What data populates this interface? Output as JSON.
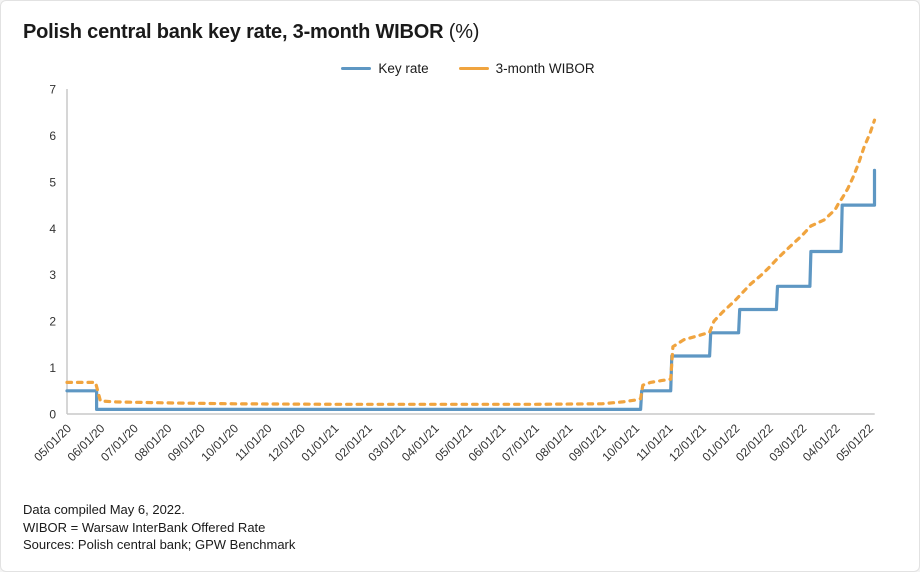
{
  "title": {
    "main": "Polish central bank key rate, 3-month WIBOR",
    "suffix": " (%)"
  },
  "footer": {
    "line1": "Data compiled May 6, 2022.",
    "line2": "WIBOR = Warsaw InterBank Offered Rate",
    "line3": "Sources: Polish central bank; GPW Benchmark"
  },
  "colors": {
    "key_rate": "#5e97c3",
    "wibor": "#f0a43f",
    "axis": "#c8c8c8",
    "tick_text": "#333333",
    "text": "#1a1a1a"
  },
  "chart_data": {
    "type": "line",
    "title": "Polish central bank key rate, 3-month WIBOR (%)",
    "xlabel": "",
    "ylabel": "",
    "ylim": [
      0,
      7
    ],
    "y_ticks": [
      0,
      1,
      2,
      3,
      4,
      5,
      6,
      7
    ],
    "grid": false,
    "legend_position": "top-center",
    "x_range_months": 24.17,
    "x_tick_labels": [
      "05/01/20",
      "06/01/20",
      "07/01/20",
      "08/01/20",
      "09/01/20",
      "10/01/20",
      "11/01/20",
      "12/01/20",
      "01/01/21",
      "02/01/21",
      "03/01/21",
      "04/01/21",
      "05/01/21",
      "06/01/21",
      "07/01/21",
      "08/01/21",
      "09/01/21",
      "10/01/21",
      "11/01/21",
      "12/01/21",
      "01/01/22",
      "02/01/22",
      "03/01/22",
      "04/01/22",
      "05/01/22"
    ],
    "series": [
      {
        "name": "Key rate",
        "color": "#5e97c3",
        "style": "solid",
        "interpolation": "step",
        "points": [
          [
            "2020-05-01",
            0.5
          ],
          [
            "2020-05-28",
            0.5
          ],
          [
            "2020-05-28",
            0.1
          ],
          [
            "2021-10-06",
            0.1
          ],
          [
            "2021-10-07",
            0.5
          ],
          [
            "2021-11-03",
            0.5
          ],
          [
            "2021-11-04",
            1.25
          ],
          [
            "2021-12-08",
            1.25
          ],
          [
            "2021-12-09",
            1.75
          ],
          [
            "2022-01-04",
            1.75
          ],
          [
            "2022-01-05",
            2.25
          ],
          [
            "2022-02-08",
            2.25
          ],
          [
            "2022-02-09",
            2.75
          ],
          [
            "2022-03-08",
            2.75
          ],
          [
            "2022-03-09",
            3.5
          ],
          [
            "2022-04-06",
            3.5
          ],
          [
            "2022-04-07",
            4.5
          ],
          [
            "2022-05-06",
            4.5
          ],
          [
            "2022-05-06",
            5.25
          ]
        ]
      },
      {
        "name": "3-month WIBOR",
        "color": "#f0a43f",
        "style": "dashed",
        "interpolation": "linear",
        "points": [
          [
            "2020-05-01",
            0.68
          ],
          [
            "2020-05-27",
            0.68
          ],
          [
            "2020-06-01",
            0.28
          ],
          [
            "2020-06-15",
            0.26
          ],
          [
            "2020-08-01",
            0.24
          ],
          [
            "2020-10-01",
            0.22
          ],
          [
            "2021-01-01",
            0.21
          ],
          [
            "2021-07-01",
            0.21
          ],
          [
            "2021-09-01",
            0.22
          ],
          [
            "2021-09-20",
            0.26
          ],
          [
            "2021-10-01",
            0.3
          ],
          [
            "2021-10-06",
            0.33
          ],
          [
            "2021-10-08",
            0.62
          ],
          [
            "2021-10-15",
            0.68
          ],
          [
            "2021-10-25",
            0.72
          ],
          [
            "2021-11-03",
            0.75
          ],
          [
            "2021-11-05",
            1.45
          ],
          [
            "2021-11-15",
            1.6
          ],
          [
            "2021-11-30",
            1.7
          ],
          [
            "2021-12-08",
            1.76
          ],
          [
            "2021-12-12",
            2.0
          ],
          [
            "2021-12-20",
            2.2
          ],
          [
            "2022-01-01",
            2.45
          ],
          [
            "2022-01-05",
            2.55
          ],
          [
            "2022-01-15",
            2.8
          ],
          [
            "2022-01-25",
            3.0
          ],
          [
            "2022-02-01",
            3.15
          ],
          [
            "2022-02-09",
            3.35
          ],
          [
            "2022-02-20",
            3.6
          ],
          [
            "2022-03-01",
            3.85
          ],
          [
            "2022-03-09",
            4.05
          ],
          [
            "2022-03-21",
            4.18
          ],
          [
            "2022-03-31",
            4.4
          ],
          [
            "2022-04-04",
            4.55
          ],
          [
            "2022-04-07",
            4.65
          ],
          [
            "2022-04-12",
            4.85
          ],
          [
            "2022-04-17",
            5.1
          ],
          [
            "2022-04-22",
            5.4
          ],
          [
            "2022-04-27",
            5.75
          ],
          [
            "2022-05-02",
            6.05
          ],
          [
            "2022-05-06",
            6.33
          ]
        ]
      }
    ]
  }
}
